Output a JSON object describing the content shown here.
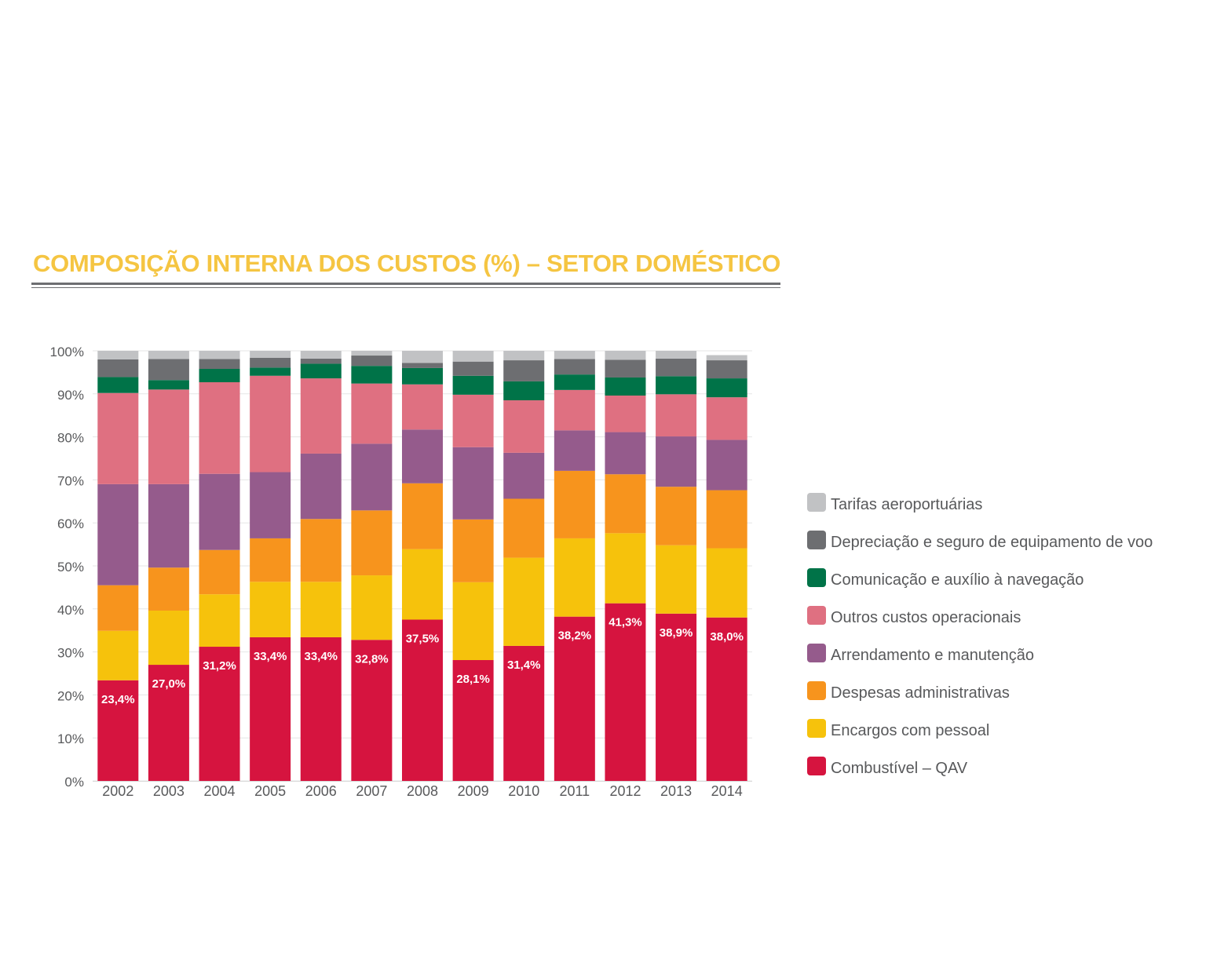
{
  "title": "COMPOSIÇÃO INTERNA DOS CUSTOS (%) – SETOR DOMÉSTICO",
  "colors": {
    "title": "#f5c542",
    "rule": "#6d6e71",
    "axis_text": "#58595b",
    "grid": "#e6e6e6"
  },
  "chart_data": {
    "type": "bar",
    "stacked": true,
    "title": "COMPOSIÇÃO INTERNA DOS CUSTOS (%) – SETOR DOMÉSTICO",
    "categories": [
      "2002",
      "2003",
      "2004",
      "2005",
      "2006",
      "2007",
      "2008",
      "2009",
      "2010",
      "2011",
      "2012",
      "2013",
      "2014"
    ],
    "ylim": [
      0,
      100
    ],
    "yticks": [
      "0%",
      "10%",
      "20%",
      "30%",
      "40%",
      "50%",
      "60%",
      "70%",
      "80%",
      "90%",
      "100%"
    ],
    "grid": true,
    "legend_position": "right",
    "series": [
      {
        "name": "Combustível – QAV",
        "color": "#d6143f",
        "values": [
          23.4,
          27.0,
          31.2,
          33.4,
          33.4,
          32.8,
          37.5,
          28.1,
          31.4,
          38.2,
          41.3,
          38.9,
          38.0
        ]
      },
      {
        "name": "Encargos com pessoal",
        "color": "#f6c20c",
        "values": [
          11.5,
          12.6,
          12.2,
          12.9,
          12.9,
          15.0,
          16.4,
          18.1,
          20.5,
          18.2,
          16.3,
          15.9,
          16.1
        ]
      },
      {
        "name": "Despesas administrativas",
        "color": "#f7941d",
        "values": [
          10.6,
          10.0,
          10.3,
          10.1,
          14.6,
          15.1,
          15.3,
          14.6,
          13.7,
          15.7,
          13.7,
          13.6,
          13.5
        ]
      },
      {
        "name": "Arrendamento e manutenção",
        "color": "#955b8c",
        "values": [
          23.5,
          19.4,
          17.7,
          15.4,
          15.2,
          15.5,
          12.5,
          16.8,
          10.7,
          9.4,
          9.8,
          11.7,
          11.7
        ]
      },
      {
        "name": "Outros custos operacionais",
        "color": "#df7081",
        "values": [
          21.2,
          22.0,
          21.3,
          22.4,
          17.5,
          14.0,
          10.5,
          12.2,
          12.2,
          9.4,
          8.5,
          9.8,
          9.9
        ]
      },
      {
        "name": "Comunicação e auxílio à navegação",
        "color": "#007348",
        "values": [
          3.7,
          2.2,
          3.1,
          1.9,
          3.4,
          4.1,
          3.8,
          4.4,
          4.4,
          3.6,
          4.2,
          4.2,
          4.4
        ]
      },
      {
        "name": "Depreciação e seguro de equipamento de voo",
        "color": "#6d6e71",
        "values": [
          4.1,
          4.9,
          2.3,
          2.3,
          1.2,
          2.4,
          1.2,
          3.3,
          4.9,
          3.6,
          4.1,
          4.1,
          4.2
        ]
      },
      {
        "name": "Tarifas aeroportuárias",
        "color": "#c1c2c4",
        "values": [
          2.0,
          1.9,
          1.9,
          1.6,
          1.8,
          1.1,
          2.8,
          2.5,
          2.2,
          1.9,
          2.1,
          1.8,
          1.2
        ]
      }
    ],
    "data_labels": [
      "23,4%",
      "27,0%",
      "31,2%",
      "33,4%",
      "33,4%",
      "32,8%",
      "37,5%",
      "28,1%",
      "31,4%",
      "38,2%",
      "41,3%",
      "38,9%",
      "38,0%"
    ]
  },
  "legend": [
    {
      "label": "Tarifas aeroportuárias",
      "color": "#c1c2c4"
    },
    {
      "label": "Depreciação e seguro de equipamento de voo",
      "color": "#6d6e71"
    },
    {
      "label": "Comunicação e auxílio à navegação",
      "color": "#007348"
    },
    {
      "label": "Outros custos operacionais",
      "color": "#df7081"
    },
    {
      "label": "Arrendamento e manutenção",
      "color": "#955b8c"
    },
    {
      "label": "Despesas administrativas",
      "color": "#f7941d"
    },
    {
      "label": "Encargos com pessoal",
      "color": "#f6c20c"
    },
    {
      "label": "Combustível – QAV",
      "color": "#d6143f"
    }
  ]
}
